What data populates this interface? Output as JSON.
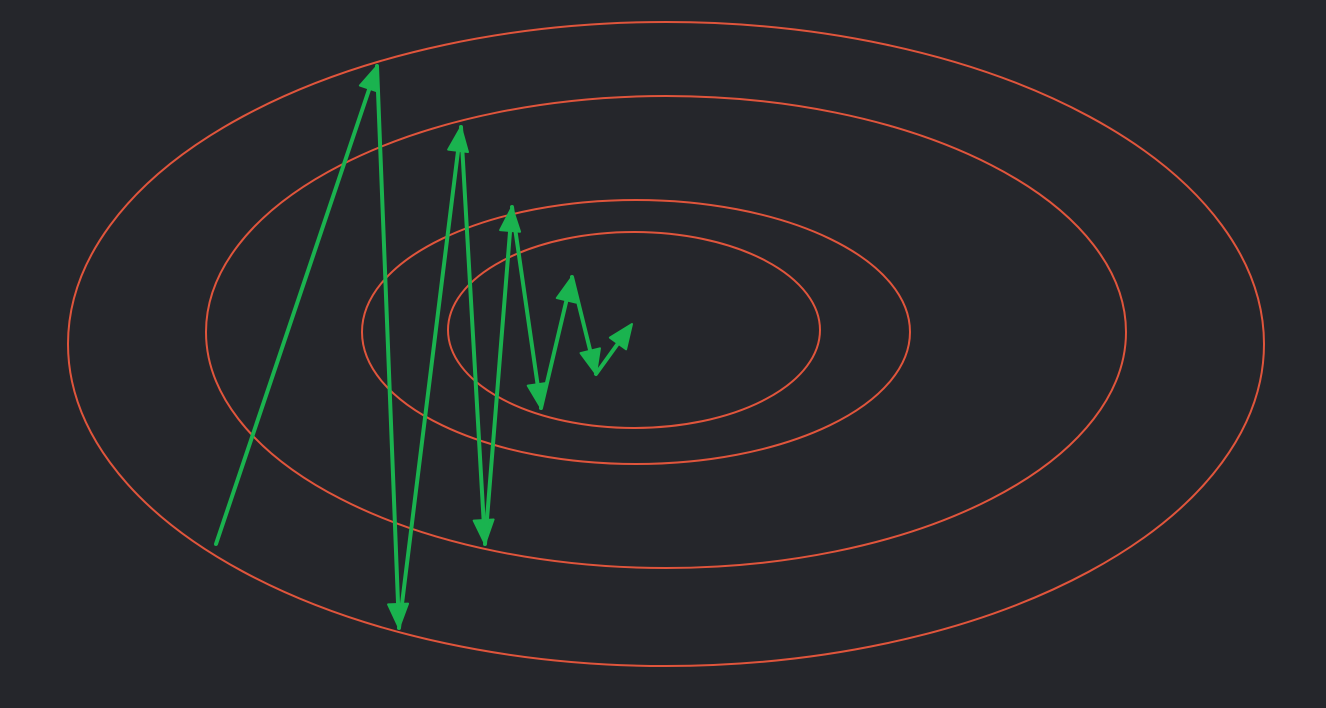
{
  "diagram": {
    "background_color": "#25262b",
    "contour_color": "#e0553c",
    "path_color": "#1ab34f",
    "contour_count": 4,
    "step_count": 8,
    "arrow_style": "filled-triangle-heads",
    "description_type": "gradient-descent-oscillation-on-elliptical-contours"
  }
}
